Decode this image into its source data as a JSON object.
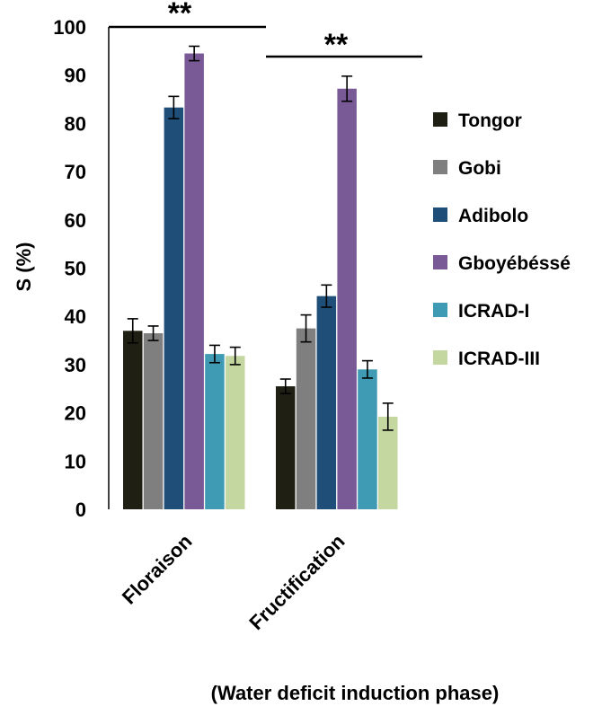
{
  "chart_data": {
    "type": "bar",
    "categories": [
      "Floraison",
      "Fructification"
    ],
    "series": [
      {
        "name": "Tongor",
        "color": "#1f1f14",
        "values": [
          37,
          25.5
        ],
        "errors": [
          2.5,
          1.5
        ]
      },
      {
        "name": "Gobi",
        "color": "#7f7f7f",
        "values": [
          36.5,
          37.5
        ],
        "errors": [
          1.5,
          2.8
        ]
      },
      {
        "name": "Adibolo",
        "color": "#1f4e79",
        "values": [
          83.3,
          44.2
        ],
        "errors": [
          2.3,
          2.3
        ]
      },
      {
        "name": "Gboyébéssé",
        "color": "#7a5a96",
        "values": [
          94.5,
          87.2
        ],
        "errors": [
          1.5,
          2.6
        ]
      },
      {
        "name": "ICRAD-I",
        "color": "#3f9bb3",
        "values": [
          32.2,
          29
        ],
        "errors": [
          1.8,
          1.8
        ]
      },
      {
        "name": "ICRAD-III",
        "color": "#c4d7a0",
        "values": [
          31.8,
          19.2
        ],
        "errors": [
          1.8,
          2.8
        ]
      }
    ],
    "ylabel": "S (%)",
    "xlabel": "(Water deficit induction phase)",
    "ylim": [
      0,
      100
    ],
    "yticks": [
      0,
      10,
      20,
      30,
      40,
      50,
      60,
      70,
      80,
      90,
      100
    ],
    "legend_position": "right",
    "grid": false,
    "annotations": [
      {
        "text": "**",
        "category": "Floraison"
      },
      {
        "text": "**",
        "category": "Fructification"
      }
    ]
  }
}
